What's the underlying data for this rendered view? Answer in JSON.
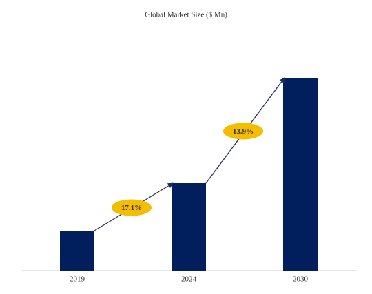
{
  "chart_data": {
    "type": "bar",
    "title": "Global Market Size ($ Mn)",
    "categories": [
      "2019",
      "2024",
      "2030"
    ],
    "values": [
      58,
      127,
      280
    ],
    "color": "#001f5c",
    "annotations": [
      "17.1%",
      "13.9%"
    ],
    "annotation_color": "#f5bd00"
  }
}
